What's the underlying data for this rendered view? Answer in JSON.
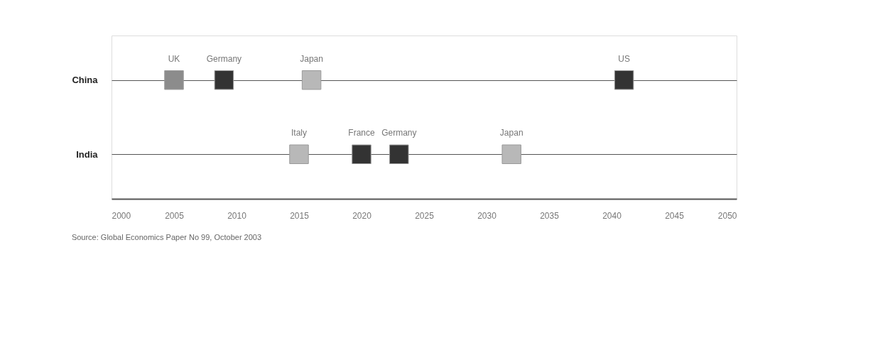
{
  "chart_data": {
    "type": "scatter",
    "orientation": "horizontal",
    "categories": [
      "China",
      "India"
    ],
    "series": [
      {
        "values": [
          2005,
          2015
        ],
        "colors": [
          "#8c8c8c",
          "#b8b8b8"
        ],
        "value_labels": [
          "UK",
          "Italy"
        ]
      },
      {
        "values": [
          2009,
          2020
        ],
        "colors": [
          "#333333",
          "#333333"
        ],
        "value_labels": [
          "Germany",
          "France"
        ]
      },
      {
        "values": [
          2016,
          2023
        ],
        "colors": [
          "#b8b8b8",
          "#333333"
        ],
        "value_labels": [
          "Japan",
          "Germany"
        ]
      },
      {
        "values": [
          2041,
          2032
        ],
        "colors": [
          "#333333",
          "#b8b8b8"
        ],
        "value_labels": [
          "US",
          "Japan"
        ]
      }
    ],
    "xlim": [
      2000,
      2050
    ],
    "xticks": [
      2000,
      2005,
      2010,
      2015,
      2020,
      2025,
      2030,
      2035,
      2040,
      2045,
      2050
    ],
    "marker": "square",
    "grid": "y",
    "annotations": [
      "Source: Global Economics Paper No 99, October 2003"
    ]
  }
}
